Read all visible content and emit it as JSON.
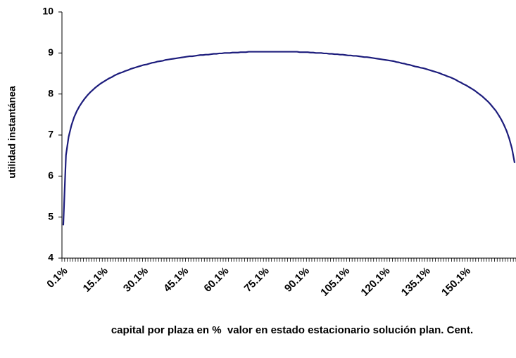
{
  "chart_data": {
    "type": "line",
    "x_label": "capital por plaza en %  valor en estado estacionario solución plan. Cent.",
    "y_label": "utilidad instantánea",
    "categories": [
      "0.1%",
      null,
      null,
      null,
      null,
      null,
      null,
      null,
      null,
      null,
      null,
      null,
      null,
      null,
      null,
      "15.1%",
      null,
      null,
      null,
      null,
      null,
      null,
      null,
      null,
      null,
      null,
      null,
      null,
      null,
      null,
      "30.1%",
      null,
      null,
      null,
      null,
      null,
      null,
      null,
      null,
      null,
      null,
      null,
      null,
      null,
      null,
      "45.1%",
      null,
      null,
      null,
      null,
      null,
      null,
      null,
      null,
      null,
      null,
      null,
      null,
      null,
      null,
      "60.1%",
      null,
      null,
      null,
      null,
      null,
      null,
      null,
      null,
      null,
      null,
      null,
      null,
      null,
      null,
      "75.1%",
      null,
      null,
      null,
      null,
      null,
      null,
      null,
      null,
      null,
      null,
      null,
      null,
      null,
      null,
      "90.1%",
      null,
      null,
      null,
      null,
      null,
      null,
      null,
      null,
      null,
      null,
      null,
      null,
      null,
      null,
      "105.1%",
      null,
      null,
      null,
      null,
      null,
      null,
      null,
      null,
      null,
      null,
      null,
      null,
      null,
      null,
      "120.1%",
      null,
      null,
      null,
      null,
      null,
      null,
      null,
      null,
      null,
      null,
      null,
      null,
      null,
      null,
      "135.1%",
      null,
      null,
      null,
      null,
      null,
      null,
      null,
      null,
      null,
      null,
      null,
      null,
      null,
      null,
      "150.1%",
      null,
      null,
      null,
      null,
      null,
      null,
      null,
      null,
      null,
      null,
      null,
      null,
      null,
      null,
      null,
      null,
      null,
      null
    ],
    "values": [
      4.8,
      6.51,
      6.96,
      7.23,
      7.43,
      7.58,
      7.7,
      7.8,
      7.89,
      7.97,
      8.04,
      8.1,
      8.16,
      8.21,
      8.26,
      8.3,
      8.34,
      8.38,
      8.41,
      8.45,
      8.48,
      8.51,
      8.53,
      8.56,
      8.58,
      8.61,
      8.63,
      8.65,
      8.67,
      8.69,
      8.71,
      8.72,
      8.74,
      8.76,
      8.77,
      8.79,
      8.8,
      8.81,
      8.83,
      8.84,
      8.85,
      8.86,
      8.87,
      8.88,
      8.89,
      8.9,
      8.91,
      8.92,
      8.92,
      8.93,
      8.94,
      8.95,
      8.95,
      8.96,
      8.96,
      8.97,
      8.98,
      8.98,
      8.99,
      8.99,
      9.0,
      9.0,
      9.0,
      9.01,
      9.01,
      9.01,
      9.02,
      9.02,
      9.02,
      9.03,
      9.03,
      9.03,
      9.03,
      9.03,
      9.03,
      9.03,
      9.03,
      9.03,
      9.03,
      9.03,
      9.03,
      9.03,
      9.03,
      9.03,
      9.03,
      9.03,
      9.03,
      9.03,
      9.02,
      9.02,
      9.02,
      9.02,
      9.01,
      9.01,
      9.0,
      9.0,
      9.0,
      8.99,
      8.99,
      8.98,
      8.98,
      8.97,
      8.97,
      8.96,
      8.96,
      8.95,
      8.94,
      8.94,
      8.93,
      8.93,
      8.92,
      8.91,
      8.9,
      8.9,
      8.89,
      8.88,
      8.87,
      8.86,
      8.85,
      8.84,
      8.83,
      8.82,
      8.81,
      8.8,
      8.78,
      8.77,
      8.75,
      8.74,
      8.72,
      8.71,
      8.69,
      8.67,
      8.66,
      8.64,
      8.63,
      8.61,
      8.59,
      8.57,
      8.55,
      8.53,
      8.51,
      8.48,
      8.46,
      8.43,
      8.41,
      8.38,
      8.35,
      8.31,
      8.28,
      8.24,
      8.21,
      8.17,
      8.13,
      8.09,
      8.04,
      7.99,
      7.94,
      7.88,
      7.82,
      7.75,
      7.67,
      7.59,
      7.49,
      7.38,
      7.25,
      7.1,
      6.91,
      6.67,
      6.32
    ],
    "color": "#1c1c7c",
    "ylim": [
      4,
      10
    ],
    "yticks": [
      4,
      5,
      6,
      7,
      8,
      9,
      10
    ],
    "grid": false
  }
}
